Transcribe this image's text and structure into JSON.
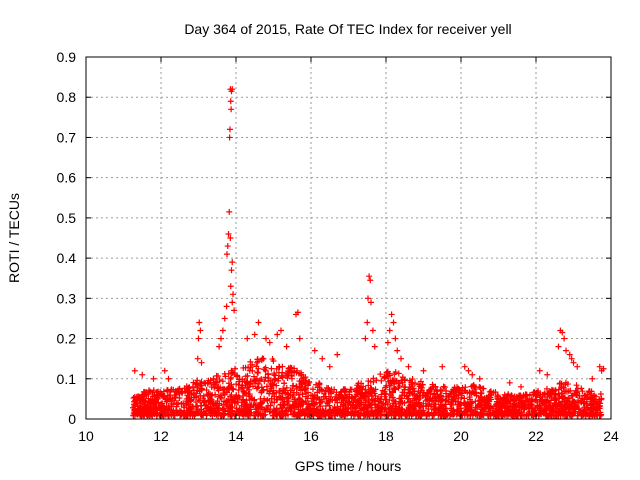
{
  "chart_data": {
    "type": "scatter",
    "title": "Day 364 of 2015, Rate Of TEC Index for receiver yell",
    "xlabel": "GPS time / hours",
    "ylabel": "ROTI / TECUs",
    "xlim": [
      10,
      24
    ],
    "ylim": [
      0,
      0.9
    ],
    "xticks": [
      10,
      12,
      14,
      16,
      18,
      20,
      22,
      24
    ],
    "xtick_labels": [
      "10",
      "12",
      "14",
      "16",
      "18",
      "20",
      "22",
      "24"
    ],
    "yticks": [
      0,
      0.1,
      0.2,
      0.3,
      0.4,
      0.5,
      0.6,
      0.7,
      0.8,
      0.9
    ],
    "ytick_labels": [
      "0",
      "0.1",
      "0.2",
      "0.3",
      "0.4",
      "0.5",
      "0.6",
      "0.7",
      "0.8",
      "0.9"
    ],
    "grid": true,
    "marker": "+",
    "color": "#ff0000",
    "background_band": [
      [
        11.25,
        0.045
      ],
      [
        11.5,
        0.06
      ],
      [
        11.75,
        0.065
      ],
      [
        12.0,
        0.06
      ],
      [
        12.25,
        0.07
      ],
      [
        12.5,
        0.075
      ],
      [
        12.75,
        0.08
      ],
      [
        13.0,
        0.09
      ],
      [
        13.25,
        0.09
      ],
      [
        13.5,
        0.1
      ],
      [
        13.75,
        0.11
      ],
      [
        14.0,
        0.12
      ],
      [
        14.25,
        0.13
      ],
      [
        14.5,
        0.14
      ],
      [
        14.75,
        0.15
      ],
      [
        15.0,
        0.14
      ],
      [
        15.25,
        0.13
      ],
      [
        15.5,
        0.12
      ],
      [
        15.75,
        0.11
      ],
      [
        16.0,
        0.09
      ],
      [
        16.25,
        0.08
      ],
      [
        16.5,
        0.07
      ],
      [
        16.75,
        0.065
      ],
      [
        17.0,
        0.07
      ],
      [
        17.25,
        0.08
      ],
      [
        17.5,
        0.09
      ],
      [
        17.75,
        0.1
      ],
      [
        18.0,
        0.11
      ],
      [
        18.25,
        0.11
      ],
      [
        18.5,
        0.1
      ],
      [
        18.75,
        0.09
      ],
      [
        19.0,
        0.085
      ],
      [
        19.25,
        0.08
      ],
      [
        19.5,
        0.075
      ],
      [
        19.75,
        0.07
      ],
      [
        20.0,
        0.075
      ],
      [
        20.25,
        0.08
      ],
      [
        20.5,
        0.075
      ],
      [
        20.75,
        0.065
      ],
      [
        21.0,
        0.06
      ],
      [
        21.25,
        0.055
      ],
      [
        21.5,
        0.05
      ],
      [
        21.75,
        0.055
      ],
      [
        22.0,
        0.06
      ],
      [
        22.25,
        0.07
      ],
      [
        22.5,
        0.08
      ],
      [
        22.75,
        0.085
      ],
      [
        23.0,
        0.08
      ],
      [
        23.25,
        0.07
      ],
      [
        23.5,
        0.06
      ],
      [
        23.75,
        0.055
      ]
    ],
    "peaks": [
      {
        "x": 13.85,
        "y": 0.82
      },
      {
        "x": 13.88,
        "y": 0.815
      },
      {
        "x": 13.9,
        "y": 0.82
      },
      {
        "x": 13.86,
        "y": 0.79
      },
      {
        "x": 13.87,
        "y": 0.77
      },
      {
        "x": 13.84,
        "y": 0.72
      },
      {
        "x": 13.83,
        "y": 0.7
      },
      {
        "x": 13.82,
        "y": 0.515
      },
      {
        "x": 13.8,
        "y": 0.46
      },
      {
        "x": 13.85,
        "y": 0.45
      },
      {
        "x": 13.78,
        "y": 0.43
      },
      {
        "x": 13.76,
        "y": 0.41
      },
      {
        "x": 13.9,
        "y": 0.39
      },
      {
        "x": 13.88,
        "y": 0.37
      },
      {
        "x": 13.86,
        "y": 0.33
      },
      {
        "x": 13.92,
        "y": 0.31
      },
      {
        "x": 13.9,
        "y": 0.29
      },
      {
        "x": 13.75,
        "y": 0.28
      },
      {
        "x": 13.95,
        "y": 0.27
      },
      {
        "x": 13.7,
        "y": 0.25
      },
      {
        "x": 13.65,
        "y": 0.22
      },
      {
        "x": 13.6,
        "y": 0.2
      },
      {
        "x": 13.55,
        "y": 0.18
      },
      {
        "x": 13.02,
        "y": 0.24
      },
      {
        "x": 13.05,
        "y": 0.22
      },
      {
        "x": 13.0,
        "y": 0.2
      },
      {
        "x": 12.98,
        "y": 0.15
      },
      {
        "x": 13.08,
        "y": 0.14
      },
      {
        "x": 12.1,
        "y": 0.12
      },
      {
        "x": 12.2,
        "y": 0.1
      },
      {
        "x": 11.5,
        "y": 0.11
      },
      {
        "x": 11.3,
        "y": 0.12
      },
      {
        "x": 11.8,
        "y": 0.1
      },
      {
        "x": 14.3,
        "y": 0.2
      },
      {
        "x": 14.5,
        "y": 0.21
      },
      {
        "x": 14.6,
        "y": 0.24
      },
      {
        "x": 14.8,
        "y": 0.2
      },
      {
        "x": 14.9,
        "y": 0.19
      },
      {
        "x": 15.1,
        "y": 0.21
      },
      {
        "x": 15.2,
        "y": 0.22
      },
      {
        "x": 15.35,
        "y": 0.18
      },
      {
        "x": 15.6,
        "y": 0.26
      },
      {
        "x": 15.65,
        "y": 0.265
      },
      {
        "x": 15.7,
        "y": 0.2
      },
      {
        "x": 16.1,
        "y": 0.17
      },
      {
        "x": 16.3,
        "y": 0.15
      },
      {
        "x": 16.5,
        "y": 0.13
      },
      {
        "x": 16.7,
        "y": 0.16
      },
      {
        "x": 17.55,
        "y": 0.355
      },
      {
        "x": 17.58,
        "y": 0.345
      },
      {
        "x": 17.52,
        "y": 0.3
      },
      {
        "x": 17.6,
        "y": 0.29
      },
      {
        "x": 17.5,
        "y": 0.24
      },
      {
        "x": 17.65,
        "y": 0.22
      },
      {
        "x": 17.45,
        "y": 0.2
      },
      {
        "x": 17.7,
        "y": 0.18
      },
      {
        "x": 18.15,
        "y": 0.26
      },
      {
        "x": 18.2,
        "y": 0.24
      },
      {
        "x": 18.1,
        "y": 0.22
      },
      {
        "x": 18.25,
        "y": 0.2
      },
      {
        "x": 18.05,
        "y": 0.19
      },
      {
        "x": 18.3,
        "y": 0.17
      },
      {
        "x": 18.4,
        "y": 0.15
      },
      {
        "x": 18.6,
        "y": 0.13
      },
      {
        "x": 19.0,
        "y": 0.12
      },
      {
        "x": 19.5,
        "y": 0.13
      },
      {
        "x": 20.1,
        "y": 0.13
      },
      {
        "x": 20.2,
        "y": 0.12
      },
      {
        "x": 20.3,
        "y": 0.11
      },
      {
        "x": 20.5,
        "y": 0.1
      },
      {
        "x": 21.3,
        "y": 0.09
      },
      {
        "x": 21.6,
        "y": 0.08
      },
      {
        "x": 22.1,
        "y": 0.12
      },
      {
        "x": 22.3,
        "y": 0.11
      },
      {
        "x": 22.65,
        "y": 0.22
      },
      {
        "x": 22.7,
        "y": 0.215
      },
      {
        "x": 22.75,
        "y": 0.2
      },
      {
        "x": 22.6,
        "y": 0.18
      },
      {
        "x": 22.8,
        "y": 0.17
      },
      {
        "x": 22.9,
        "y": 0.16
      },
      {
        "x": 22.95,
        "y": 0.15
      },
      {
        "x": 23.0,
        "y": 0.14
      },
      {
        "x": 23.1,
        "y": 0.13
      },
      {
        "x": 23.5,
        "y": 0.1
      },
      {
        "x": 23.7,
        "y": 0.13
      },
      {
        "x": 23.75,
        "y": 0.12
      },
      {
        "x": 23.8,
        "y": 0.125
      }
    ]
  }
}
